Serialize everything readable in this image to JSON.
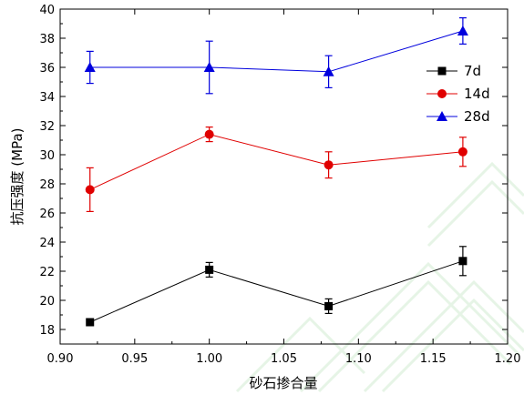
{
  "chart_data": {
    "type": "line",
    "xlabel": "砂石掺合量",
    "ylabel": "抗压强度 (MPa)",
    "xlim": [
      0.9,
      1.2
    ],
    "ylim": [
      17,
      40
    ],
    "xticks": [
      "0.90",
      "0.95",
      "1.00",
      "1.05",
      "1.10",
      "1.15",
      "1.20"
    ],
    "yticks": [
      "18",
      "20",
      "22",
      "24",
      "26",
      "28",
      "30",
      "32",
      "34",
      "36",
      "38",
      "40"
    ],
    "x": [
      0.92,
      1.0,
      1.08,
      1.17
    ],
    "series": [
      {
        "name": "7d",
        "color": "#000000",
        "marker": "square",
        "values": [
          18.5,
          22.1,
          19.6,
          22.7
        ],
        "errors": [
          0.2,
          0.5,
          0.5,
          1.0
        ]
      },
      {
        "name": "14d",
        "color": "#e00000",
        "marker": "circle",
        "values": [
          27.6,
          31.4,
          29.3,
          30.2
        ],
        "errors": [
          1.5,
          0.5,
          0.9,
          1.0
        ]
      },
      {
        "name": "28d",
        "color": "#0000dd",
        "marker": "triangle",
        "values": [
          36.0,
          36.0,
          35.7,
          38.5
        ],
        "errors": [
          1.1,
          1.8,
          1.1,
          0.9
        ]
      }
    ],
    "legend_position": "right-upper",
    "grid": false
  }
}
